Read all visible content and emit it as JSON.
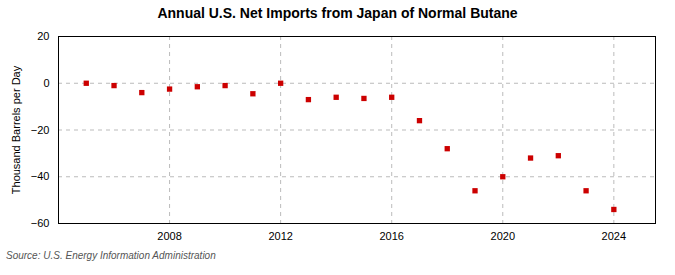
{
  "chart_data": {
    "type": "scatter",
    "title": "Annual U.S. Net Imports from Japan of Normal Butane",
    "ylabel": "Thousand Barrels per Day",
    "source": "Source: U.S. Energy Information Administration",
    "x": [
      2005,
      2006,
      2007,
      2008,
      2009,
      2010,
      2011,
      2012,
      2013,
      2014,
      2015,
      2016,
      2017,
      2018,
      2019,
      2020,
      2021,
      2022,
      2023,
      2024
    ],
    "values": [
      0.0,
      -1.0,
      -4.0,
      -2.5,
      -1.5,
      -1.0,
      -4.5,
      0.0,
      -7.0,
      -6.0,
      -6.5,
      -6.0,
      -16.0,
      -28.0,
      -46.0,
      -40.0,
      -32.0,
      -31.0,
      -46.0,
      -54.0
    ],
    "color": "#cc0000",
    "marker": "square",
    "xlim": [
      2004.0,
      2025.5
    ],
    "xticks": [
      2008,
      2012,
      2016,
      2020,
      2024
    ],
    "ylim": [
      -60,
      20
    ],
    "yticks": [
      -60,
      -40,
      -20,
      0,
      20
    ],
    "grid": true
  }
}
